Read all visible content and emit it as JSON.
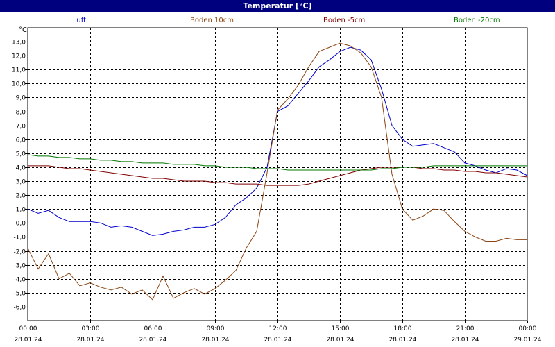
{
  "window": {
    "title": "Temperatur [°C]"
  },
  "colors": {
    "Luft": "#0000cc",
    "Boden 10cm": "#8b4513",
    "Boden -5cm": "#800000",
    "Boden -20cm": "#007700",
    "grid": "#000000",
    "background": "#ffffff"
  },
  "chart_data": {
    "type": "line",
    "title": "Temperatur [°C]",
    "ylabel": "°C",
    "xlabel": "",
    "ylim": [
      -7,
      14
    ],
    "xlim": [
      "28.01.24 00:00",
      "29.01.24 00:00"
    ],
    "grid": true,
    "legend_position": "top",
    "y_ticks": [
      "13,0",
      "12,0",
      "11,0",
      "10,0",
      "9,0",
      "8,0",
      "7,0",
      "6,0",
      "5,0",
      "4,0",
      "3,0",
      "2,0",
      "1,0",
      "0,0",
      "-1,0",
      "-2,0",
      "-3,0",
      "-4,0",
      "-5,0",
      "-6,0"
    ],
    "x_ticks": [
      {
        "time": "00:00",
        "date": "28.01.24"
      },
      {
        "time": "03:00",
        "date": "28.01.24"
      },
      {
        "time": "06:00",
        "date": "28.01.24"
      },
      {
        "time": "09:00",
        "date": "28.01.24"
      },
      {
        "time": "12:00",
        "date": "28.01.24"
      },
      {
        "time": "15:00",
        "date": "28.01.24"
      },
      {
        "time": "18:00",
        "date": "28.01.24"
      },
      {
        "time": "21:00",
        "date": "28.01.24"
      },
      {
        "time": "00:00",
        "date": "29.01.24"
      }
    ],
    "x_hours": [
      0,
      0.5,
      1,
      1.5,
      2,
      2.5,
      3,
      3.5,
      4,
      4.5,
      5,
      5.5,
      6,
      6.5,
      7,
      7.5,
      8,
      8.5,
      9,
      9.5,
      10,
      10.5,
      11,
      11.5,
      12,
      12.5,
      13,
      13.5,
      14,
      14.5,
      15,
      15.5,
      16,
      16.5,
      17,
      17.5,
      18,
      18.5,
      19,
      19.5,
      20,
      20.5,
      21,
      21.5,
      22,
      22.5,
      23,
      23.5,
      24
    ],
    "series": [
      {
        "name": "Luft",
        "values": [
          1.0,
          0.7,
          0.9,
          0.4,
          0.1,
          0.1,
          0.1,
          0.0,
          -0.3,
          -0.2,
          -0.3,
          -0.6,
          -0.9,
          -0.8,
          -0.6,
          -0.5,
          -0.3,
          -0.3,
          -0.1,
          0.4,
          1.3,
          1.8,
          2.5,
          4.0,
          8.0,
          8.4,
          9.3,
          10.2,
          11.2,
          11.7,
          12.3,
          12.6,
          12.4,
          11.7,
          9.6,
          7.0,
          6.0,
          5.5,
          5.6,
          5.7,
          5.4,
          5.1,
          4.3,
          4.1,
          3.8,
          3.6,
          3.9,
          3.8,
          3.4
        ]
      },
      {
        "name": "Boden 10cm",
        "values": [
          -1.8,
          -3.3,
          -2.2,
          -4.0,
          -3.6,
          -4.5,
          -4.3,
          -4.6,
          -4.8,
          -4.6,
          -5.1,
          -4.8,
          -5.5,
          -3.8,
          -5.4,
          -5.0,
          -4.7,
          -5.1,
          -4.7,
          -4.1,
          -3.4,
          -1.8,
          -0.6,
          3.6,
          8.1,
          8.9,
          9.9,
          11.2,
          12.3,
          12.6,
          12.9,
          12.7,
          12.2,
          11.2,
          9.0,
          3.5,
          1.0,
          0.2,
          0.5,
          1.0,
          0.9,
          0.1,
          -0.6,
          -1.0,
          -1.3,
          -1.3,
          -1.1,
          -1.2,
          -1.2
        ]
      },
      {
        "name": "Boden -5cm",
        "values": [
          4.1,
          4.1,
          4.1,
          4.0,
          3.9,
          3.9,
          3.8,
          3.7,
          3.6,
          3.5,
          3.4,
          3.3,
          3.2,
          3.2,
          3.1,
          3.0,
          3.0,
          3.0,
          2.9,
          2.9,
          2.8,
          2.8,
          2.8,
          2.7,
          2.7,
          2.7,
          2.7,
          2.8,
          3.0,
          3.2,
          3.4,
          3.6,
          3.8,
          3.9,
          4.0,
          4.0,
          4.0,
          4.0,
          3.9,
          3.9,
          3.8,
          3.8,
          3.7,
          3.7,
          3.6,
          3.6,
          3.5,
          3.4,
          3.3
        ]
      },
      {
        "name": "Boden -20cm",
        "values": [
          4.9,
          4.8,
          4.8,
          4.7,
          4.7,
          4.6,
          4.6,
          4.5,
          4.5,
          4.4,
          4.4,
          4.3,
          4.3,
          4.3,
          4.2,
          4.2,
          4.2,
          4.1,
          4.1,
          4.0,
          4.0,
          4.0,
          3.9,
          3.9,
          3.9,
          3.8,
          3.8,
          3.8,
          3.8,
          3.8,
          3.8,
          3.8,
          3.8,
          3.8,
          3.9,
          3.9,
          4.0,
          4.0,
          4.0,
          4.1,
          4.1,
          4.1,
          4.1,
          4.1,
          4.1,
          4.1,
          4.1,
          4.1,
          4.1
        ]
      }
    ]
  }
}
